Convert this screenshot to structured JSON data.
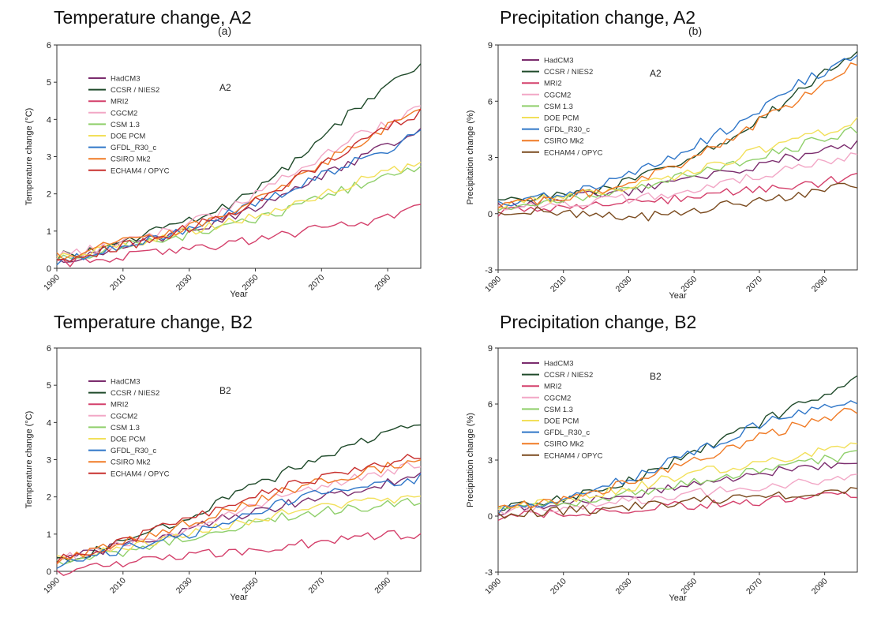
{
  "chart_data": [
    {
      "type": "line",
      "title": "Temperature change, A2",
      "panel_letter": "(a)",
      "scenario_label": "A2",
      "xlabel": "Year",
      "ylabel": "Temperature change (°C)",
      "xlim": [
        1990,
        2100
      ],
      "ylim": [
        0,
        6
      ],
      "xticks": [
        1990,
        2010,
        2030,
        2050,
        2070,
        2090
      ],
      "yticks": [
        0,
        1,
        2,
        3,
        4,
        5,
        6
      ],
      "legend_position": "top-left",
      "grid": false,
      "x": [
        1990,
        2000,
        2010,
        2020,
        2030,
        2040,
        2050,
        2060,
        2070,
        2080,
        2090,
        2100
      ],
      "series": [
        {
          "name": "HadCM3",
          "color": "#7b2d6e",
          "values": [
            0.2,
            0.4,
            0.6,
            0.8,
            1.0,
            1.3,
            1.6,
            2.0,
            2.5,
            2.9,
            3.3,
            3.8
          ]
        },
        {
          "name": "CCSR / NIES2",
          "color": "#1f4a2a",
          "values": [
            0.3,
            0.5,
            0.7,
            1.0,
            1.3,
            1.6,
            2.1,
            2.7,
            3.5,
            4.3,
            4.9,
            5.4
          ]
        },
        {
          "name": "MRI2",
          "color": "#d4406b",
          "values": [
            0.1,
            0.2,
            0.3,
            0.4,
            0.5,
            0.6,
            0.8,
            0.9,
            1.1,
            1.2,
            1.4,
            1.6
          ]
        },
        {
          "name": "CGCM2",
          "color": "#f2a7c6",
          "values": [
            0.3,
            0.5,
            0.7,
            0.9,
            1.2,
            1.5,
            2.0,
            2.5,
            3.0,
            3.5,
            3.9,
            4.3
          ]
        },
        {
          "name": "CSM 1.3",
          "color": "#8fcf6a",
          "values": [
            0.2,
            0.4,
            0.6,
            0.8,
            0.9,
            1.1,
            1.3,
            1.6,
            1.9,
            2.2,
            2.5,
            2.7
          ]
        },
        {
          "name": "DOE PCM",
          "color": "#f2e05a",
          "values": [
            0.3,
            0.4,
            0.6,
            0.8,
            1.0,
            1.2,
            1.4,
            1.7,
            2.0,
            2.3,
            2.6,
            2.8
          ]
        },
        {
          "name": "GFDL_R30_c",
          "color": "#2f76c8",
          "values": [
            0.2,
            0.4,
            0.6,
            0.8,
            1.1,
            1.4,
            1.7,
            2.1,
            2.5,
            2.9,
            3.2,
            3.7
          ]
        },
        {
          "name": "CSIRO Mk2",
          "color": "#f07b26",
          "values": [
            0.3,
            0.5,
            0.7,
            0.9,
            1.1,
            1.4,
            1.8,
            2.3,
            2.8,
            3.3,
            3.8,
            4.2
          ]
        },
        {
          "name": "ECHAM4 / OPYC",
          "color": "#c8302e",
          "values": [
            0.2,
            0.4,
            0.6,
            0.8,
            1.1,
            1.4,
            1.8,
            2.3,
            2.8,
            3.3,
            3.8,
            4.2
          ]
        }
      ]
    },
    {
      "type": "line",
      "title": "Precipitation change, A2",
      "panel_letter": "(b)",
      "scenario_label": "A2",
      "xlabel": "Year",
      "ylabel": "Precipitation change (%)",
      "xlim": [
        1990,
        2100
      ],
      "ylim": [
        -3,
        9
      ],
      "xticks": [
        1990,
        2010,
        2030,
        2050,
        2070,
        2090
      ],
      "yticks": [
        -3,
        0,
        3,
        6,
        9
      ],
      "legend_position": "top-left",
      "grid": false,
      "x": [
        1990,
        2000,
        2010,
        2020,
        2030,
        2040,
        2050,
        2060,
        2070,
        2080,
        2090,
        2100
      ],
      "series": [
        {
          "name": "HadCM3",
          "color": "#7b2d6e",
          "values": [
            0.3,
            0.6,
            0.8,
            1.0,
            1.2,
            1.5,
            1.9,
            2.2,
            2.6,
            3.0,
            3.4,
            3.7
          ]
        },
        {
          "name": "CCSR / NIES2",
          "color": "#1f4a2a",
          "values": [
            0.5,
            0.8,
            1.0,
            1.3,
            1.7,
            2.3,
            3.0,
            3.9,
            5.0,
            6.2,
            7.5,
            8.7
          ]
        },
        {
          "name": "MRI2",
          "color": "#d4406b",
          "values": [
            0.1,
            0.3,
            0.4,
            0.5,
            0.6,
            0.7,
            0.9,
            1.1,
            1.3,
            1.5,
            1.7,
            1.9
          ]
        },
        {
          "name": "CGCM2",
          "color": "#f2a7c6",
          "values": [
            0.3,
            0.5,
            0.6,
            0.7,
            0.8,
            1.0,
            1.3,
            1.6,
            2.0,
            2.4,
            2.8,
            3.2
          ]
        },
        {
          "name": "CSM 1.3",
          "color": "#8fcf6a",
          "values": [
            0.4,
            0.6,
            0.8,
            1.0,
            1.3,
            1.7,
            2.1,
            2.5,
            3.0,
            3.5,
            4.0,
            4.5
          ]
        },
        {
          "name": "DOE PCM",
          "color": "#f2e05a",
          "values": [
            0.5,
            0.7,
            0.9,
            1.1,
            1.4,
            1.8,
            2.3,
            2.8,
            3.4,
            3.9,
            4.4,
            4.9
          ]
        },
        {
          "name": "GFDL_R30_c",
          "color": "#2f76c8",
          "values": [
            0.4,
            0.8,
            1.1,
            1.5,
            2.1,
            2.8,
            3.6,
            4.5,
            5.6,
            6.8,
            7.6,
            8.3
          ]
        },
        {
          "name": "CSIRO Mk2",
          "color": "#f07b26",
          "values": [
            0.4,
            0.7,
            0.9,
            1.2,
            1.6,
            2.2,
            3.0,
            3.9,
            4.9,
            5.9,
            7.0,
            8.0
          ]
        },
        {
          "name": "ECHAM4 / OPYC",
          "color": "#7a4a1e",
          "values": [
            0.1,
            0.2,
            0.1,
            0.0,
            -0.2,
            -0.1,
            0.2,
            0.5,
            0.7,
            1.0,
            1.3,
            1.5
          ]
        }
      ]
    },
    {
      "type": "line",
      "title": "Temperature change, B2",
      "panel_letter": "",
      "scenario_label": "B2",
      "xlabel": "Year",
      "ylabel": "Temperature change (°C)",
      "xlim": [
        1990,
        2100
      ],
      "ylim": [
        0,
        6
      ],
      "xticks": [
        1990,
        2010,
        2030,
        2050,
        2070,
        2090
      ],
      "yticks": [
        0,
        1,
        2,
        3,
        4,
        5,
        6
      ],
      "legend_position": "top-left",
      "grid": false,
      "x": [
        1990,
        2000,
        2010,
        2020,
        2030,
        2040,
        2050,
        2060,
        2070,
        2080,
        2090,
        2100
      ],
      "series": [
        {
          "name": "HadCM3",
          "color": "#7b2d6e",
          "values": [
            0.3,
            0.5,
            0.7,
            0.9,
            1.1,
            1.4,
            1.6,
            1.8,
            2.0,
            2.2,
            2.4,
            2.6
          ]
        },
        {
          "name": "CCSR / NIES2",
          "color": "#1f4a2a",
          "values": [
            0.3,
            0.5,
            0.8,
            1.1,
            1.5,
            1.9,
            2.3,
            2.7,
            3.1,
            3.4,
            3.7,
            4.0
          ]
        },
        {
          "name": "MRI2",
          "color": "#d4406b",
          "values": [
            0.0,
            0.1,
            0.2,
            0.3,
            0.4,
            0.5,
            0.6,
            0.7,
            0.8,
            0.9,
            1.0,
            1.0
          ]
        },
        {
          "name": "CGCM2",
          "color": "#f2a7c6",
          "values": [
            0.3,
            0.5,
            0.7,
            0.9,
            1.2,
            1.5,
            1.8,
            2.1,
            2.3,
            2.5,
            2.7,
            2.9
          ]
        },
        {
          "name": "CSM 1.3",
          "color": "#8fcf6a",
          "values": [
            0.2,
            0.4,
            0.5,
            0.7,
            0.9,
            1.1,
            1.3,
            1.5,
            1.6,
            1.7,
            1.8,
            1.9
          ]
        },
        {
          "name": "DOE PCM",
          "color": "#f2e05a",
          "values": [
            0.3,
            0.5,
            0.6,
            0.8,
            1.0,
            1.2,
            1.4,
            1.6,
            1.7,
            1.8,
            1.9,
            2.0
          ]
        },
        {
          "name": "GFDL_R30_c",
          "color": "#2f76c8",
          "values": [
            0.2,
            0.4,
            0.6,
            0.8,
            1.0,
            1.3,
            1.6,
            1.9,
            2.1,
            2.3,
            2.4,
            2.5
          ]
        },
        {
          "name": "CSIRO Mk2",
          "color": "#f07b26",
          "values": [
            0.3,
            0.5,
            0.8,
            1.0,
            1.3,
            1.6,
            1.9,
            2.2,
            2.4,
            2.6,
            2.8,
            3.0
          ]
        },
        {
          "name": "ECHAM4 / OPYC",
          "color": "#c8302e",
          "values": [
            0.3,
            0.5,
            0.8,
            1.1,
            1.4,
            1.7,
            2.0,
            2.3,
            2.5,
            2.7,
            2.9,
            3.1
          ]
        }
      ]
    },
    {
      "type": "line",
      "title": "Precipitation change, B2",
      "panel_letter": "",
      "scenario_label": "B2",
      "xlabel": "Year",
      "ylabel": "Precipitation change (%)",
      "xlim": [
        1990,
        2100
      ],
      "ylim": [
        -3,
        9
      ],
      "xticks": [
        1990,
        2010,
        2030,
        2050,
        2070,
        2090
      ],
      "yticks": [
        -3,
        0,
        3,
        6,
        9
      ],
      "legend_position": "top-left",
      "grid": false,
      "x": [
        1990,
        2000,
        2010,
        2020,
        2030,
        2040,
        2050,
        2060,
        2070,
        2080,
        2090,
        2100
      ],
      "series": [
        {
          "name": "HadCM3",
          "color": "#7b2d6e",
          "values": [
            0.3,
            0.5,
            0.7,
            0.9,
            1.1,
            1.4,
            1.7,
            2.0,
            2.3,
            2.5,
            2.7,
            2.9
          ]
        },
        {
          "name": "CCSR / NIES2",
          "color": "#1f4a2a",
          "values": [
            0.4,
            0.7,
            1.0,
            1.4,
            1.9,
            2.6,
            3.4,
            4.2,
            5.0,
            5.8,
            6.6,
            7.4
          ]
        },
        {
          "name": "MRI2",
          "color": "#d4406b",
          "values": [
            0.0,
            0.1,
            0.2,
            0.3,
            0.4,
            0.5,
            0.6,
            0.7,
            0.8,
            0.9,
            1.0,
            1.1
          ]
        },
        {
          "name": "CGCM2",
          "color": "#f2a7c6",
          "values": [
            0.2,
            0.4,
            0.5,
            0.6,
            0.8,
            1.0,
            1.2,
            1.4,
            1.6,
            1.8,
            1.9,
            2.0
          ]
        },
        {
          "name": "CSM 1.3",
          "color": "#8fcf6a",
          "values": [
            0.3,
            0.5,
            0.7,
            0.9,
            1.2,
            1.5,
            1.8,
            2.1,
            2.4,
            2.7,
            3.0,
            3.3
          ]
        },
        {
          "name": "DOE PCM",
          "color": "#f2e05a",
          "values": [
            0.4,
            0.6,
            0.9,
            1.2,
            1.5,
            1.9,
            2.3,
            2.6,
            2.9,
            3.2,
            3.5,
            3.8
          ]
        },
        {
          "name": "GFDL_R30_c",
          "color": "#2f76c8",
          "values": [
            0.3,
            0.6,
            1.0,
            1.4,
            2.0,
            2.7,
            3.4,
            4.1,
            4.9,
            5.5,
            5.9,
            6.1
          ]
        },
        {
          "name": "CSIRO Mk2",
          "color": "#f07b26",
          "values": [
            0.3,
            0.6,
            0.9,
            1.3,
            1.8,
            2.4,
            3.0,
            3.6,
            4.2,
            4.8,
            5.3,
            5.7
          ]
        },
        {
          "name": "ECHAM4 / OPYC",
          "color": "#7a4a1e",
          "values": [
            0.1,
            0.2,
            0.3,
            0.4,
            0.5,
            0.6,
            0.8,
            0.9,
            1.1,
            1.2,
            1.3,
            1.4
          ]
        }
      ]
    }
  ]
}
